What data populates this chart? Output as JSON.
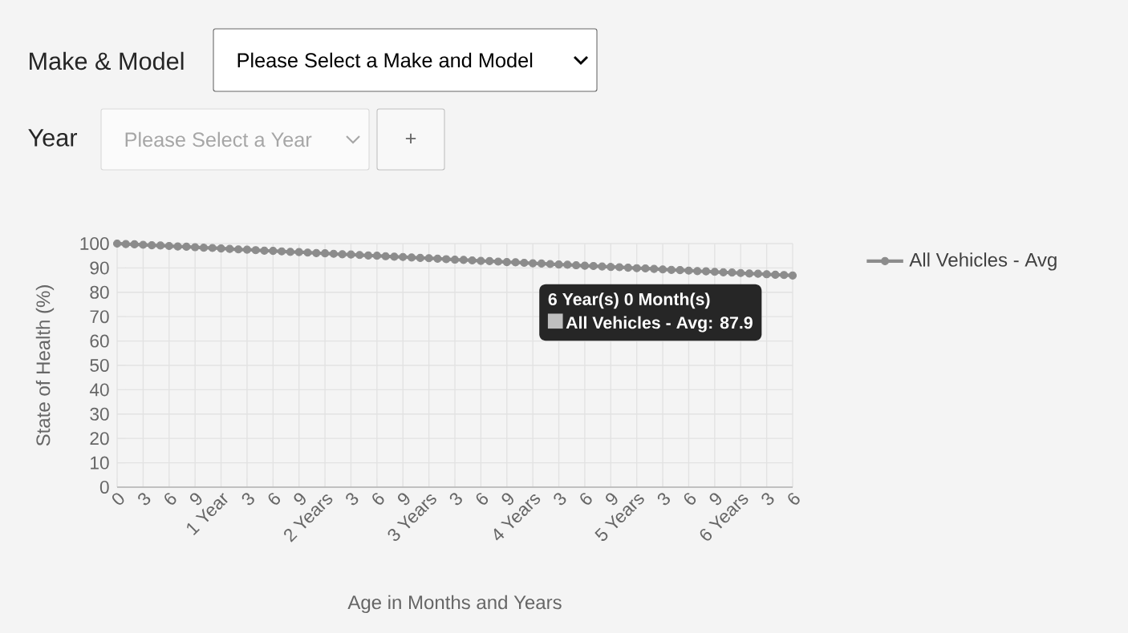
{
  "chart_data": {
    "type": "line",
    "xlabel": "Age in Months and Years",
    "ylabel": "State of Health (%)",
    "categories": [
      "0",
      null,
      null,
      "3",
      null,
      null,
      "6",
      null,
      null,
      "9",
      null,
      null,
      "1 Year",
      null,
      null,
      "3",
      null,
      null,
      "6",
      null,
      null,
      "9",
      null,
      null,
      "2 Years",
      null,
      null,
      "3",
      null,
      null,
      "6",
      null,
      null,
      "9",
      null,
      null,
      "3 Years",
      null,
      null,
      "3",
      null,
      null,
      "6",
      null,
      null,
      "9",
      null,
      null,
      "4 Years",
      null,
      null,
      "3",
      null,
      null,
      "6",
      null,
      null,
      "9",
      null,
      null,
      "5 Years",
      null,
      null,
      "3",
      null,
      null,
      "6",
      null,
      null,
      "9",
      null,
      null,
      "6 Years",
      null,
      null,
      "3",
      null,
      null,
      "6"
    ],
    "series": [
      {
        "name": "All Vehicles - Avg",
        "color": "#8c8c8c",
        "values": [
          100.0,
          99.8,
          99.7,
          99.5,
          99.3,
          99.2,
          99.0,
          98.8,
          98.7,
          98.5,
          98.3,
          98.2,
          98.0,
          97.8,
          97.6,
          97.5,
          97.3,
          97.1,
          97.0,
          96.8,
          96.6,
          96.5,
          96.3,
          96.1,
          96.0,
          95.8,
          95.6,
          95.5,
          95.3,
          95.1,
          95.0,
          94.8,
          94.6,
          94.5,
          94.3,
          94.1,
          94.0,
          93.8,
          93.6,
          93.4,
          93.3,
          93.1,
          92.9,
          92.8,
          92.6,
          92.4,
          92.3,
          92.1,
          91.9,
          91.8,
          91.6,
          91.4,
          91.3,
          91.1,
          90.9,
          90.8,
          90.6,
          90.4,
          90.3,
          90.1,
          89.9,
          89.8,
          89.6,
          89.4,
          89.2,
          89.1,
          88.9,
          88.7,
          88.6,
          88.4,
          88.2,
          88.1,
          87.9,
          87.7,
          87.6,
          87.4,
          87.2,
          87.1,
          86.9
        ]
      }
    ],
    "ylim": [
      0,
      100
    ],
    "yticks": [
      0,
      10,
      20,
      30,
      40,
      50,
      60,
      70,
      80,
      90,
      100
    ],
    "grid": true,
    "legend": "right",
    "marker": "circle",
    "line_style": "solid",
    "annotations": [
      "Make & Model",
      "Please Select a Make and Model",
      "Year",
      "Please Select a Year",
      "+",
      {
        "text": "6 Year(s) 0 Month(s)",
        "x": "6 Years",
        "y": 87.9
      },
      {
        "text": "All Vehicles - Avg: 87.9",
        "x": "6 Years",
        "y": 87.9
      }
    ]
  }
}
